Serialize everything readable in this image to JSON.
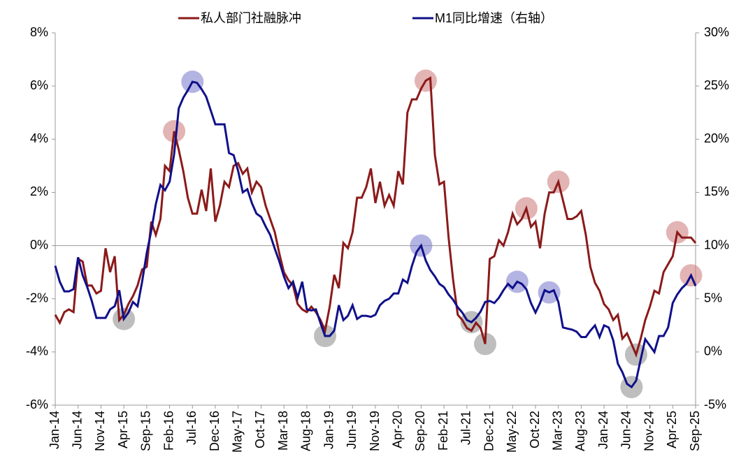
{
  "chart_data": {
    "type": "line",
    "categories": [
      "Jan-14",
      null,
      null,
      null,
      null,
      "Jun-14",
      null,
      null,
      null,
      null,
      "Nov-14",
      null,
      null,
      null,
      null,
      "Apr-15",
      null,
      null,
      null,
      null,
      "Sep-15",
      null,
      null,
      null,
      null,
      "Feb-16",
      null,
      null,
      null,
      null,
      "Jul-16",
      null,
      null,
      null,
      null,
      "Dec-16",
      null,
      null,
      null,
      null,
      "May-17",
      null,
      null,
      null,
      null,
      "Oct-17",
      null,
      null,
      null,
      null,
      "Mar-18",
      null,
      null,
      null,
      null,
      "Aug-18",
      null,
      null,
      null,
      null,
      "Jan-19",
      null,
      null,
      null,
      null,
      "Jun-19",
      null,
      null,
      null,
      null,
      "Nov-19",
      null,
      null,
      null,
      null,
      "Apr-20",
      null,
      null,
      null,
      null,
      "Sep-20",
      null,
      null,
      null,
      null,
      "Feb-21",
      null,
      null,
      null,
      null,
      "Jul-21",
      null,
      null,
      null,
      null,
      "Dec-21",
      null,
      null,
      null,
      null,
      "May-22",
      null,
      null,
      null,
      null,
      "Oct-22",
      null,
      null,
      null,
      null,
      "Mar-23",
      null,
      null,
      null,
      null,
      "Aug-23",
      null,
      null,
      null,
      null,
      "Jan-24",
      null,
      null,
      null,
      null,
      "Jun-24",
      null,
      null,
      null,
      null,
      "Nov-24",
      null,
      null,
      null,
      null,
      "Apr-25",
      null,
      null,
      null,
      null,
      "Sep-25"
    ],
    "series": [
      {
        "name": "私人部门社融脉冲",
        "color": "#8b1a1a",
        "values": [
          -2.6,
          -2.9,
          -2.5,
          -2.4,
          -2.5,
          -0.5,
          -0.6,
          -1.5,
          -1.5,
          -1.8,
          -1.7,
          -0.1,
          -1.0,
          -0.4,
          -2.8,
          -2.6,
          -2.2,
          -1.9,
          -1.5,
          -0.9,
          -0.8,
          0.9,
          0.4,
          1.0,
          3.0,
          2.8,
          4.3,
          3.6,
          2.8,
          1.8,
          1.2,
          1.2,
          2.1,
          1.3,
          2.9,
          0.9,
          1.5,
          2.4,
          2.2,
          3.0,
          3.1,
          2.7,
          2.9,
          2.0,
          2.4,
          2.2,
          1.5,
          1.0,
          0.5,
          -0.3,
          -1.0,
          -1.3,
          -1.5,
          -2.2,
          -2.4,
          -2.5,
          -2.3,
          -2.5,
          -2.8,
          -3.2,
          -2.3,
          -1.1,
          -1.6,
          0.1,
          -0.1,
          0.5,
          1.8,
          1.8,
          2.2,
          2.9,
          1.6,
          2.4,
          1.5,
          1.9,
          1.5,
          2.8,
          2.3,
          5.0,
          5.5,
          5.5,
          5.9,
          6.2,
          6.3,
          3.4,
          2.3,
          2.4,
          0.3,
          -1.3,
          -2.6,
          -2.8,
          -3.1,
          -3.2,
          -2.9,
          -3.1,
          -3.7,
          -0.5,
          -0.4,
          0.2,
          0.0,
          0.5,
          1.2,
          0.8,
          1.0,
          1.4,
          0.7,
          0.9,
          -0.1,
          1.2,
          2.0,
          2.0,
          2.4,
          1.7,
          1.0,
          1.0,
          1.1,
          1.3,
          0.4,
          -0.8,
          -1.4,
          -1.7,
          -2.2,
          -2.4,
          -2.8,
          -2.6,
          -3.5,
          -3.3,
          -3.7,
          -4.1,
          -3.5,
          -2.8,
          -2.3,
          -1.7,
          -1.8,
          -1.0,
          -0.7,
          -0.4,
          0.5,
          0.3,
          0.3,
          0.3,
          0.1
        ]
      },
      {
        "name": "M1同比增速（右轴）",
        "color": "#10108a",
        "axis": "y2",
        "values": [
          8.1,
          6.6,
          5.7,
          5.7,
          5.9,
          8.9,
          7.2,
          6.1,
          4.8,
          3.2,
          3.2,
          3.2,
          4.0,
          4.3,
          5.8,
          3.1,
          3.7,
          4.7,
          4.3,
          6.6,
          9.3,
          11.4,
          13.9,
          15.7,
          15.2,
          16.0,
          18.6,
          22.9,
          23.9,
          24.6,
          25.4,
          25.3,
          24.7,
          24.0,
          22.7,
          21.4,
          21.4,
          21.4,
          18.7,
          18.5,
          17.0,
          15.0,
          15.3,
          14.0,
          13.0,
          12.7,
          11.8,
          11.0,
          9.7,
          8.5,
          7.1,
          6.0,
          6.6,
          5.1,
          6.6,
          4.0,
          3.9,
          4.0,
          2.7,
          1.5,
          1.5,
          2.0,
          4.4,
          3.0,
          3.4,
          4.4,
          3.1,
          3.4,
          3.4,
          3.3,
          3.5,
          4.4,
          4.8,
          5.0,
          5.5,
          5.5,
          6.8,
          6.5,
          8.1,
          9.4,
          10.0,
          8.6,
          7.7,
          7.1,
          6.4,
          6.1,
          5.4,
          4.9,
          4.2,
          3.7,
          3.0,
          2.8,
          3.2,
          3.8,
          4.7,
          4.8,
          4.6,
          5.1,
          5.8,
          6.4,
          6.0,
          6.6,
          6.4,
          5.9,
          4.6,
          3.7,
          4.6,
          5.8,
          5.6,
          5.8,
          4.7,
          2.3,
          2.2,
          2.1,
          1.9,
          1.4,
          1.4,
          2.0,
          2.5,
          1.4,
          2.5,
          2.3,
          1.1,
          -1.1,
          -1.9,
          -3.0,
          -3.3,
          -2.7,
          -0.7,
          1.2,
          0.6,
          0.0,
          1.5,
          1.5,
          2.3,
          4.6,
          5.4,
          6.0,
          6.4,
          7.2,
          6.2
        ]
      }
    ],
    "ylim": [
      -6,
      8
    ],
    "yticks": [
      {
        "value": -6,
        "label": "-6%"
      },
      {
        "value": -4,
        "label": "-4%"
      },
      {
        "value": -2,
        "label": "-2%"
      },
      {
        "value": 0,
        "label": "0%"
      },
      {
        "value": 2,
        "label": "2%"
      },
      {
        "value": 4,
        "label": "4%"
      },
      {
        "value": 6,
        "label": "6%"
      },
      {
        "value": 8,
        "label": "8%"
      }
    ],
    "y2lim": [
      -5,
      30
    ],
    "y2ticks": [
      {
        "value": -5,
        "label": "-5%"
      },
      {
        "value": 0,
        "label": "0%"
      },
      {
        "value": 5,
        "label": "5%"
      },
      {
        "value": 10,
        "label": "10%"
      },
      {
        "value": 15,
        "label": "15%"
      },
      {
        "value": 20,
        "label": "20%"
      },
      {
        "value": 25,
        "label": "25%"
      },
      {
        "value": 30,
        "label": "30%"
      }
    ],
    "legend": "top"
  }
}
